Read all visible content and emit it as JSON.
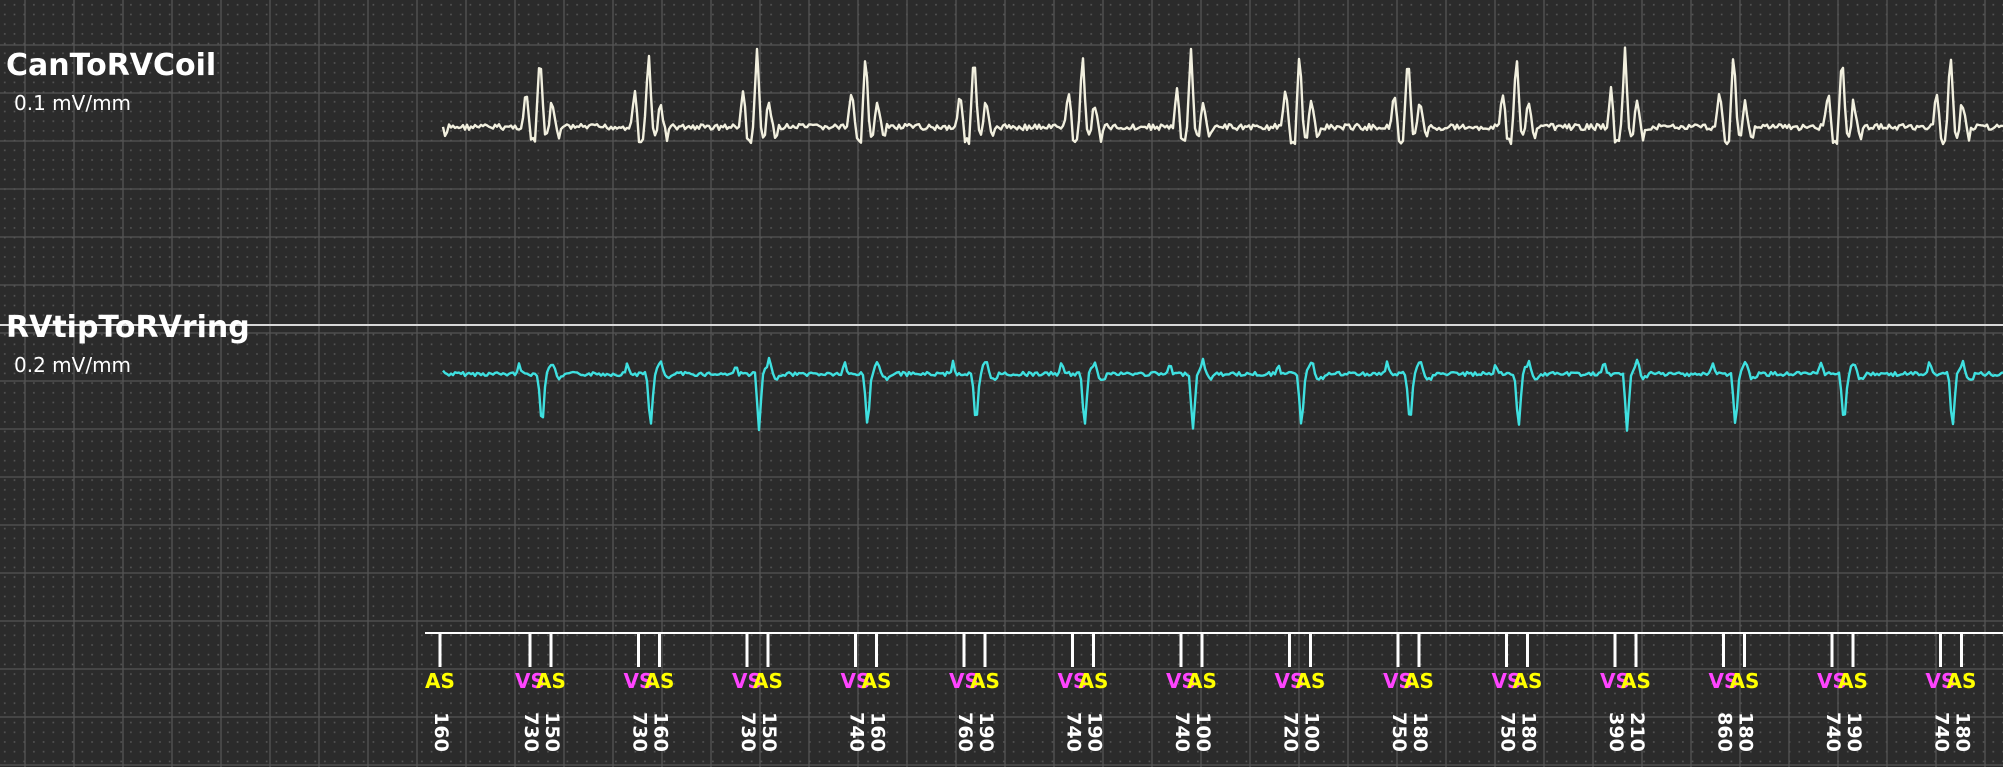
{
  "colors": {
    "background": "#2b2b2b",
    "grid_major": "#555555",
    "grid_dot": "#7a7a7a",
    "separator": "#d8d8d8",
    "trace_1": "#f2f0df",
    "trace_2": "#3fe0e0",
    "marker_atrial": "#ffff00",
    "marker_ventricular": "#ff44ff",
    "marker_tick": "#ffffff"
  },
  "chart_data": {
    "type": "line",
    "channels": [
      {
        "name": "CanToRVCoil",
        "scale": "0.1 mV/mm"
      },
      {
        "name": "RVtipToRVring",
        "scale": "0.2 mV/mm"
      }
    ],
    "markers": [
      {
        "code": "AS",
        "kind": "atrial"
      },
      {
        "code": "VS",
        "kind": "ventricular"
      },
      {
        "code": "AS",
        "kind": "atrial"
      },
      {
        "code": "VS",
        "kind": "ventricular"
      },
      {
        "code": "AS",
        "kind": "atrial"
      },
      {
        "code": "VS",
        "kind": "ventricular"
      },
      {
        "code": "AS",
        "kind": "atrial"
      },
      {
        "code": "VS",
        "kind": "ventricular"
      },
      {
        "code": "AS",
        "kind": "atrial"
      },
      {
        "code": "VS",
        "kind": "ventricular"
      },
      {
        "code": "AS",
        "kind": "atrial"
      },
      {
        "code": "VS",
        "kind": "ventricular"
      },
      {
        "code": "AS",
        "kind": "atrial"
      },
      {
        "code": "VS",
        "kind": "ventricular"
      },
      {
        "code": "AS",
        "kind": "atrial"
      },
      {
        "code": "VS",
        "kind": "ventricular"
      },
      {
        "code": "AS",
        "kind": "atrial"
      },
      {
        "code": "VS",
        "kind": "ventricular"
      },
      {
        "code": "AS",
        "kind": "atrial"
      },
      {
        "code": "VS",
        "kind": "ventricular"
      },
      {
        "code": "AS",
        "kind": "atrial"
      },
      {
        "code": "VS",
        "kind": "ventricular"
      },
      {
        "code": "AS",
        "kind": "atrial"
      },
      {
        "code": "VS",
        "kind": "ventricular"
      },
      {
        "code": "AS",
        "kind": "atrial"
      },
      {
        "code": "VS",
        "kind": "ventricular"
      },
      {
        "code": "AS",
        "kind": "atrial"
      },
      {
        "code": "VS",
        "kind": "ventricular"
      },
      {
        "code": "AS",
        "kind": "atrial"
      }
    ],
    "intervals": [
      "160",
      "730",
      "150",
      "730",
      "160",
      "730",
      "150",
      "740",
      "160",
      "760",
      "190",
      "740",
      "190",
      "740",
      "100",
      "720",
      "100",
      "750",
      "180",
      "750",
      "180",
      "390",
      "210",
      "860",
      "180",
      "740",
      "190",
      "740",
      "180"
    ]
  }
}
